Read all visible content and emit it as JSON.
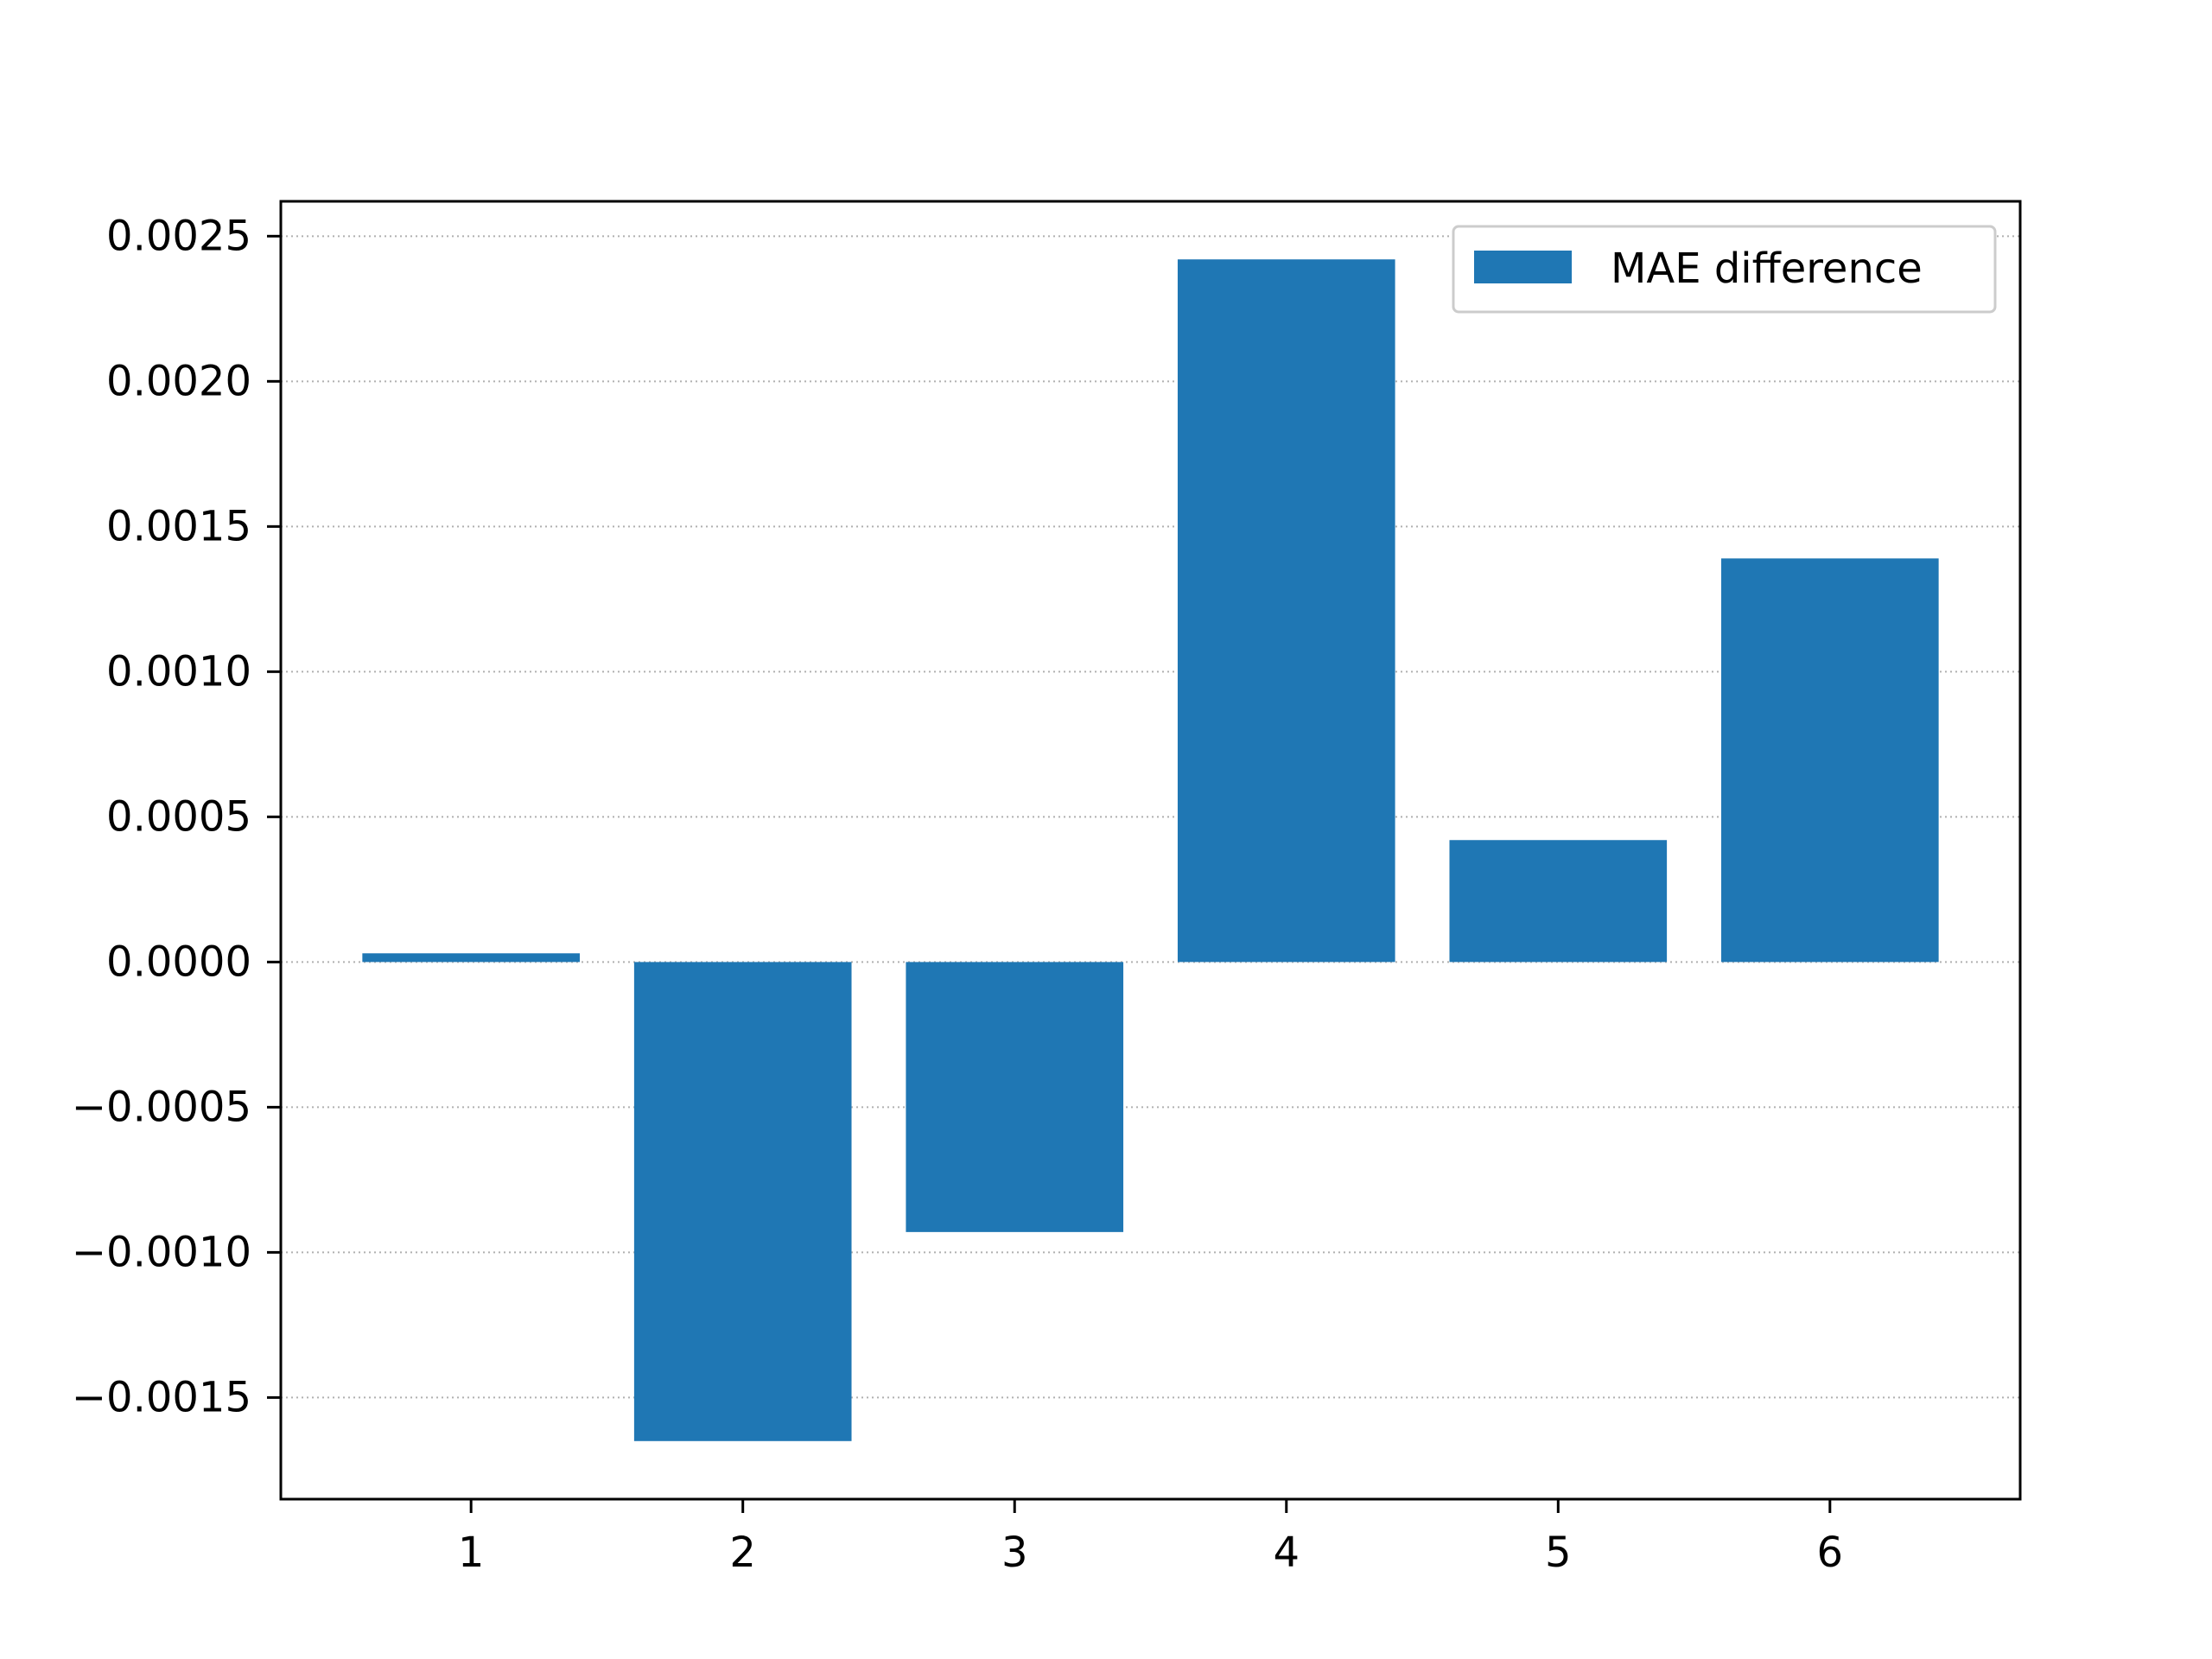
{
  "colors": {
    "bar": "#1f77b4",
    "axis": "#000000",
    "grid": "#b0b0b0",
    "background": "#ffffff",
    "legend_border": "#cccccc"
  },
  "chart_data": {
    "type": "bar",
    "title": "",
    "xlabel": "",
    "ylabel": "",
    "categories": [
      "1",
      "2",
      "3",
      "4",
      "5",
      "6"
    ],
    "series": [
      {
        "name": "MAE difference",
        "values": [
          3e-05,
          -0.00165,
          -0.00093,
          0.00242,
          0.00042,
          0.00139
        ]
      }
    ],
    "ylim": [
      -0.00185,
      0.00262
    ],
    "y_ticks": [
      -0.0015,
      -0.001,
      -0.0005,
      0.0,
      0.0005,
      0.001,
      0.0015,
      0.002,
      0.0025
    ],
    "y_tick_labels": [
      "−0.0015",
      "−0.0010",
      "−0.0005",
      "0.0000",
      "0.0005",
      "0.0010",
      "0.0015",
      "0.0020",
      "0.0025"
    ],
    "grid": "horizontal dotted",
    "legend": {
      "placement": "top-right",
      "entries": [
        "MAE difference"
      ]
    }
  }
}
